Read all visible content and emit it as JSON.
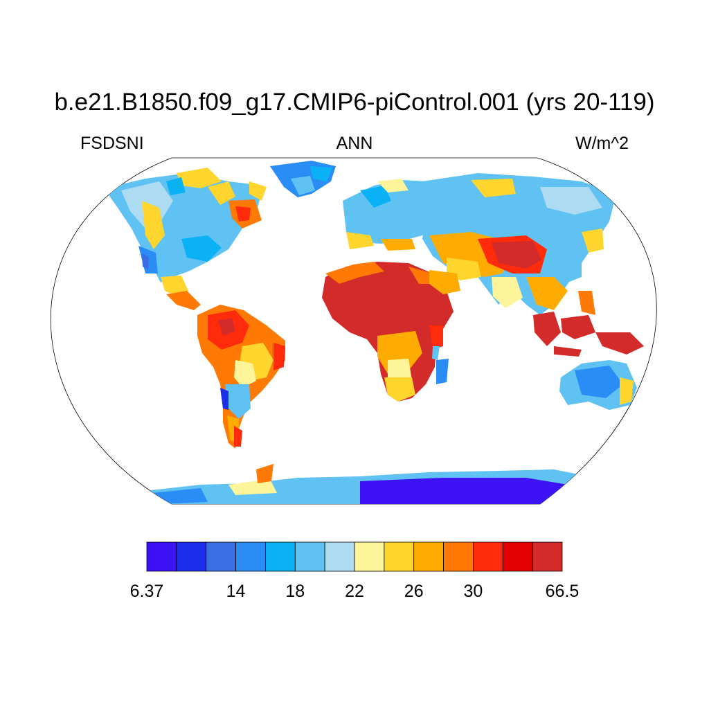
{
  "title": "b.e21.B1850.f09_g17.CMIP6-piControl.001 (yrs 20-119)",
  "left_label": "FSDSNI",
  "center_label": "ANN",
  "right_label": "W/m^2",
  "colorbar": {
    "colors": [
      "#3d12f5",
      "#1b2de8",
      "#3b6ee3",
      "#2a8cf5",
      "#0bb1f5",
      "#5fc2f2",
      "#acdbf2",
      "#fef59a",
      "#ffd52e",
      "#ffab00",
      "#ff7a05",
      "#ff2b0a",
      "#e20000",
      "#d32a2a"
    ],
    "tick_labels": [
      {
        "text": "6.37",
        "boundary": 0
      },
      {
        "text": "14",
        "boundary": 3
      },
      {
        "text": "18",
        "boundary": 5
      },
      {
        "text": "22",
        "boundary": 7
      },
      {
        "text": "26",
        "boundary": 9
      },
      {
        "text": "30",
        "boundary": 11
      },
      {
        "text": "66.5",
        "boundary": 14
      }
    ]
  }
}
